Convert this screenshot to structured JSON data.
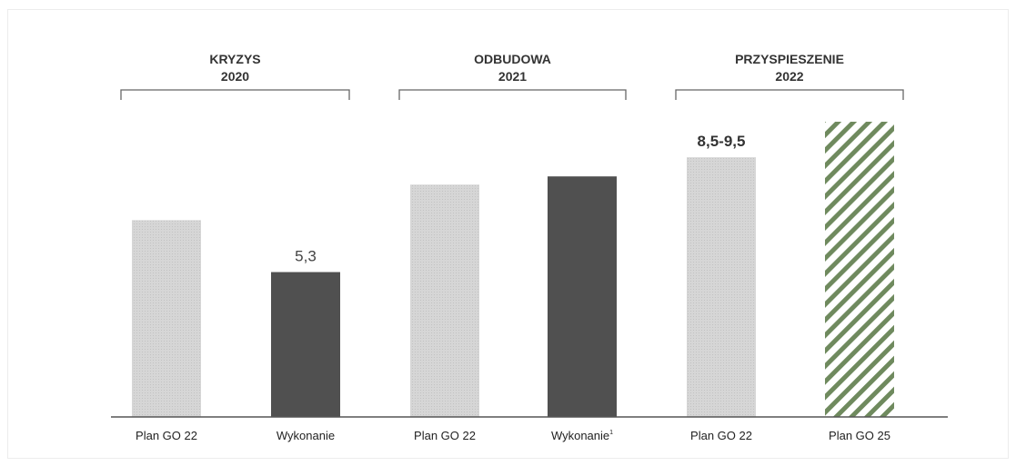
{
  "chart_data": {
    "type": "bar",
    "title": "",
    "xlabel": "",
    "ylabel": "",
    "groups": [
      {
        "title_line1": "KRYZYS",
        "title_line2": "2020",
        "bar_indices": [
          0,
          1
        ]
      },
      {
        "title_line1": "ODBUDOWA",
        "title_line2": "2021",
        "bar_indices": [
          2,
          3
        ]
      },
      {
        "title_line1": "PRZYSPIESZENIE",
        "title_line2": "2022",
        "bar_indices": [
          4,
          5
        ]
      }
    ],
    "categories": [
      "Plan GO 22",
      "Wykonanie",
      "Plan GO 22",
      "Wykonanie",
      "Plan GO 22",
      "Plan GO 25"
    ],
    "category_superscripts": [
      "",
      "",
      "",
      "1",
      "",
      ""
    ],
    "values": [
      7.2,
      5.3,
      8.5,
      8.8,
      9.5,
      10.8
    ],
    "value_labels": [
      "",
      "5,3",
      "",
      "",
      "8,5-9,5",
      ""
    ],
    "bar_styles": [
      "light-dotted",
      "dark",
      "light-dotted",
      "dark",
      "light-dotted",
      "green-hatched"
    ],
    "colors": {
      "light": "#d4d4d4",
      "dark": "#505050",
      "green_stripe": "#6f8a5e",
      "axis": "#555555",
      "bracket": "#666666"
    },
    "ylim": [
      0,
      11
    ]
  }
}
